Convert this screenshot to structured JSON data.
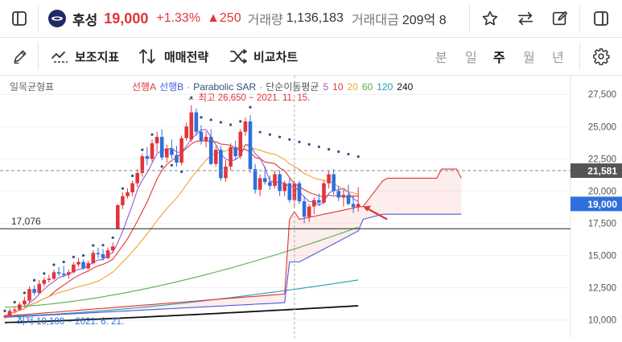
{
  "header": {
    "stock_name": "후성",
    "price": "19,000",
    "change_pct": "+1.33%",
    "change_abs": "▲250",
    "volume_label": "거래량",
    "volume_value": "1,136,183",
    "amount_label": "거래대금",
    "amount_value": "209억 8"
  },
  "toolbar": {
    "indicator_label": "보조지표",
    "strategy_label": "매매전략",
    "compare_label": "비교차트",
    "periods": [
      "분",
      "일",
      "주",
      "월",
      "년"
    ],
    "selected_period": "주"
  },
  "chart_data": {
    "type": "candlestick",
    "title": "일목균형표",
    "legend": {
      "ichimoku": [
        "선행A",
        "선행B"
      ],
      "sar": "Parabolic SAR",
      "ma_label": "단순이동평균",
      "ma_periods": [
        "5",
        "10",
        "20",
        "60",
        "120",
        "240"
      ]
    },
    "y_ticks": [
      "27,500",
      "25,000",
      "22,500",
      "20,000",
      "17,500",
      "15,000",
      "12,500",
      "10,000"
    ],
    "ylim": [
      9100,
      28700
    ],
    "current_price_tag": "19,000",
    "crosshair_price_tag": "21,581",
    "left_level_label": "17,076",
    "max_annotation": "← 최고 26,650 − 2021. 11. 15.",
    "min_annotation": "← 최저 10,100 − 2021. 6. 21.",
    "candles": [
      [
        10300,
        10400,
        10100,
        10300
      ],
      [
        10300,
        10900,
        10200,
        10700
      ],
      [
        10700,
        11000,
        10500,
        10800
      ],
      [
        10800,
        11400,
        10700,
        11200
      ],
      [
        11200,
        11800,
        11000,
        11500
      ],
      [
        11500,
        12600,
        11300,
        12400
      ],
      [
        12400,
        12700,
        11900,
        12100
      ],
      [
        12100,
        13100,
        12000,
        12800
      ],
      [
        12800,
        13300,
        12600,
        13100
      ],
      [
        13100,
        13500,
        12900,
        13200
      ],
      [
        13200,
        13900,
        13100,
        13700
      ],
      [
        13700,
        14100,
        13400,
        13600
      ],
      [
        13600,
        14200,
        13300,
        13500
      ],
      [
        13500,
        13900,
        13200,
        13700
      ],
      [
        13700,
        14500,
        13600,
        14300
      ],
      [
        14300,
        14800,
        14100,
        14500
      ],
      [
        14500,
        14700,
        13900,
        14000
      ],
      [
        14000,
        14600,
        13900,
        14400
      ],
      [
        14400,
        15400,
        14300,
        15200
      ],
      [
        15200,
        15600,
        14800,
        15100
      ],
      [
        15100,
        15500,
        14600,
        14800
      ],
      [
        14800,
        15600,
        14700,
        15400
      ],
      [
        15400,
        16000,
        15200,
        15700
      ],
      [
        17100,
        19000,
        17000,
        18900
      ],
      [
        18900,
        19900,
        18600,
        19600
      ],
      [
        19600,
        20200,
        19400,
        19900
      ],
      [
        19900,
        20800,
        19600,
        20600
      ],
      [
        20600,
        21700,
        20300,
        21400
      ],
      [
        21400,
        22900,
        21100,
        22700
      ],
      [
        22700,
        23400,
        22000,
        22500
      ],
      [
        22500,
        24000,
        22300,
        23700
      ],
      [
        23700,
        24600,
        23000,
        24200
      ],
      [
        24200,
        24800,
        22400,
        22600
      ],
      [
        22600,
        23600,
        22200,
        23300
      ],
      [
        23300,
        24000,
        22500,
        22800
      ],
      [
        22800,
        23500,
        21900,
        22200
      ],
      [
        22200,
        24300,
        22000,
        24100
      ],
      [
        24100,
        25300,
        23900,
        25000
      ],
      [
        24000,
        26650,
        23800,
        26100
      ],
      [
        26100,
        26400,
        24300,
        24600
      ],
      [
        24600,
        25100,
        23600,
        23900
      ],
      [
        23900,
        24600,
        23400,
        24200
      ],
      [
        24200,
        24800,
        22000,
        22100
      ],
      [
        22100,
        23500,
        21900,
        23200
      ],
      [
        23200,
        23500,
        20800,
        21000
      ],
      [
        21000,
        22400,
        20700,
        21900
      ],
      [
        21900,
        23700,
        21600,
        23400
      ],
      [
        23400,
        23900,
        22400,
        22700
      ],
      [
        22700,
        24800,
        22500,
        24600
      ],
      [
        24600,
        25700,
        24300,
        25400
      ],
      [
        25400,
        25900,
        21400,
        21700
      ],
      [
        21700,
        22100,
        19800,
        20100
      ],
      [
        20100,
        21300,
        19600,
        21000
      ],
      [
        21000,
        21900,
        20500,
        20700
      ],
      [
        20700,
        21200,
        20100,
        20400
      ],
      [
        20400,
        21600,
        20200,
        21300
      ],
      [
        21300,
        21600,
        19600,
        20000
      ],
      [
        20000,
        20800,
        19600,
        20600
      ],
      [
        20600,
        21000,
        19100,
        19300
      ],
      [
        19300,
        20800,
        18700,
        20600
      ],
      [
        20600,
        20800,
        19000,
        19200
      ],
      [
        19200,
        19600,
        17500,
        18000
      ],
      [
        18000,
        19000,
        17600,
        18800
      ],
      [
        18800,
        19500,
        18200,
        19300
      ],
      [
        19300,
        19800,
        18900,
        19100
      ],
      [
        19100,
        20800,
        19000,
        20600
      ],
      [
        20600,
        21600,
        20200,
        21300
      ],
      [
        21300,
        21700,
        19700,
        20000
      ],
      [
        20000,
        20400,
        19200,
        19500
      ],
      [
        19500,
        20100,
        18800,
        19700
      ],
      [
        19700,
        20500,
        18900,
        19000
      ],
      [
        19000,
        19700,
        18300,
        18750
      ],
      [
        18750,
        20300,
        18400,
        19000
      ]
    ]
  }
}
